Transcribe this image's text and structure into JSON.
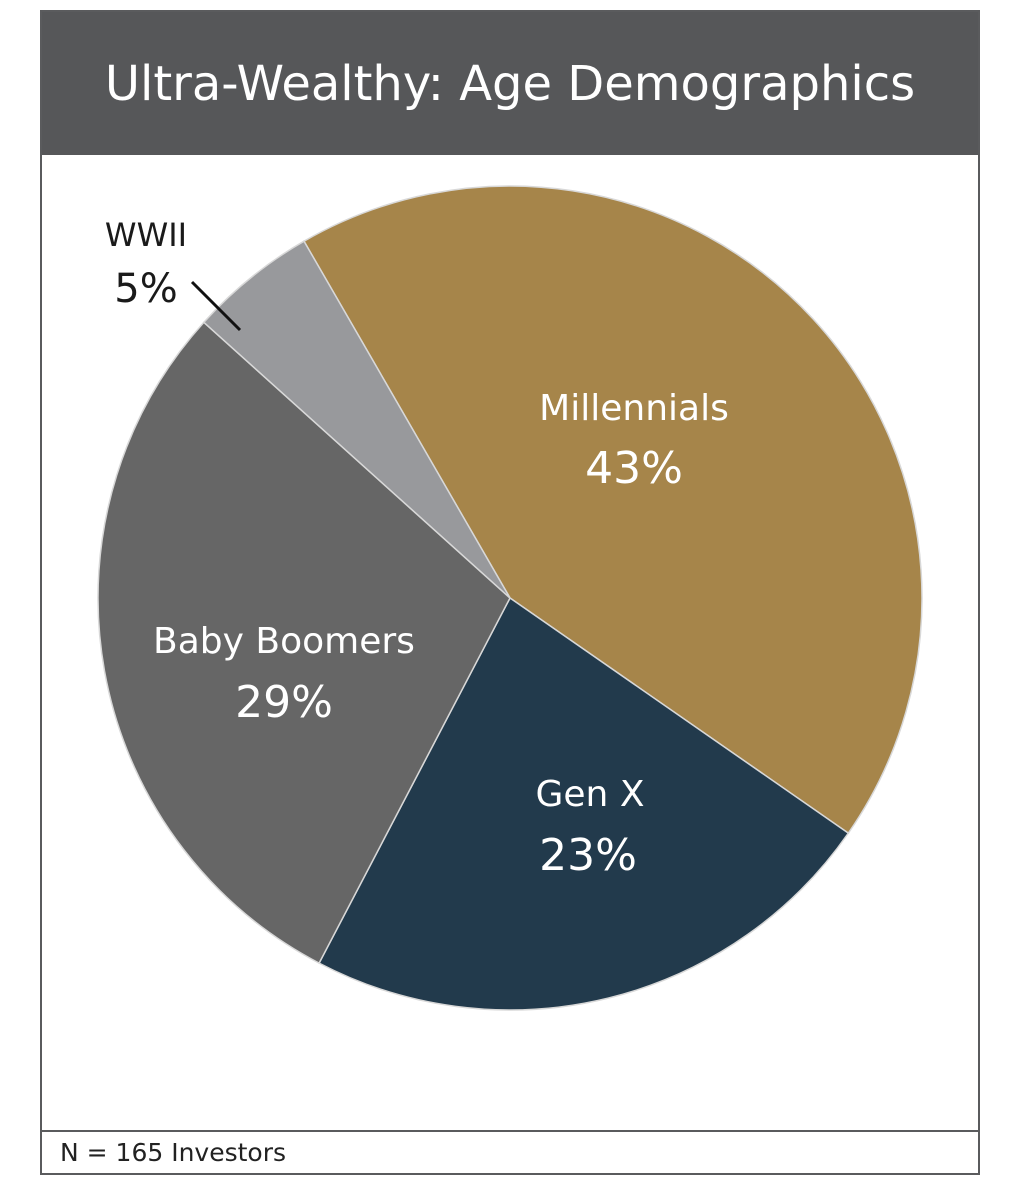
{
  "chart_data": {
    "type": "pie",
    "title": "Ultra-Wealthy: Age Demographics",
    "slices": [
      {
        "name": "Millennials",
        "value": 43,
        "label": "43%",
        "color": "#a6854a",
        "text_color": "#ffffff"
      },
      {
        "name": "Gen X",
        "value": 23,
        "label": "23%",
        "color": "#223a4c",
        "text_color": "#ffffff"
      },
      {
        "name": "Baby Boomers",
        "value": 29,
        "label": "29%",
        "color": "#666666",
        "text_color": "#ffffff"
      },
      {
        "name": "WWII",
        "value": 5,
        "label": "5%",
        "color": "#98999c",
        "text_color": "#1a1a1a"
      }
    ],
    "note": "N = 165 Investors"
  }
}
